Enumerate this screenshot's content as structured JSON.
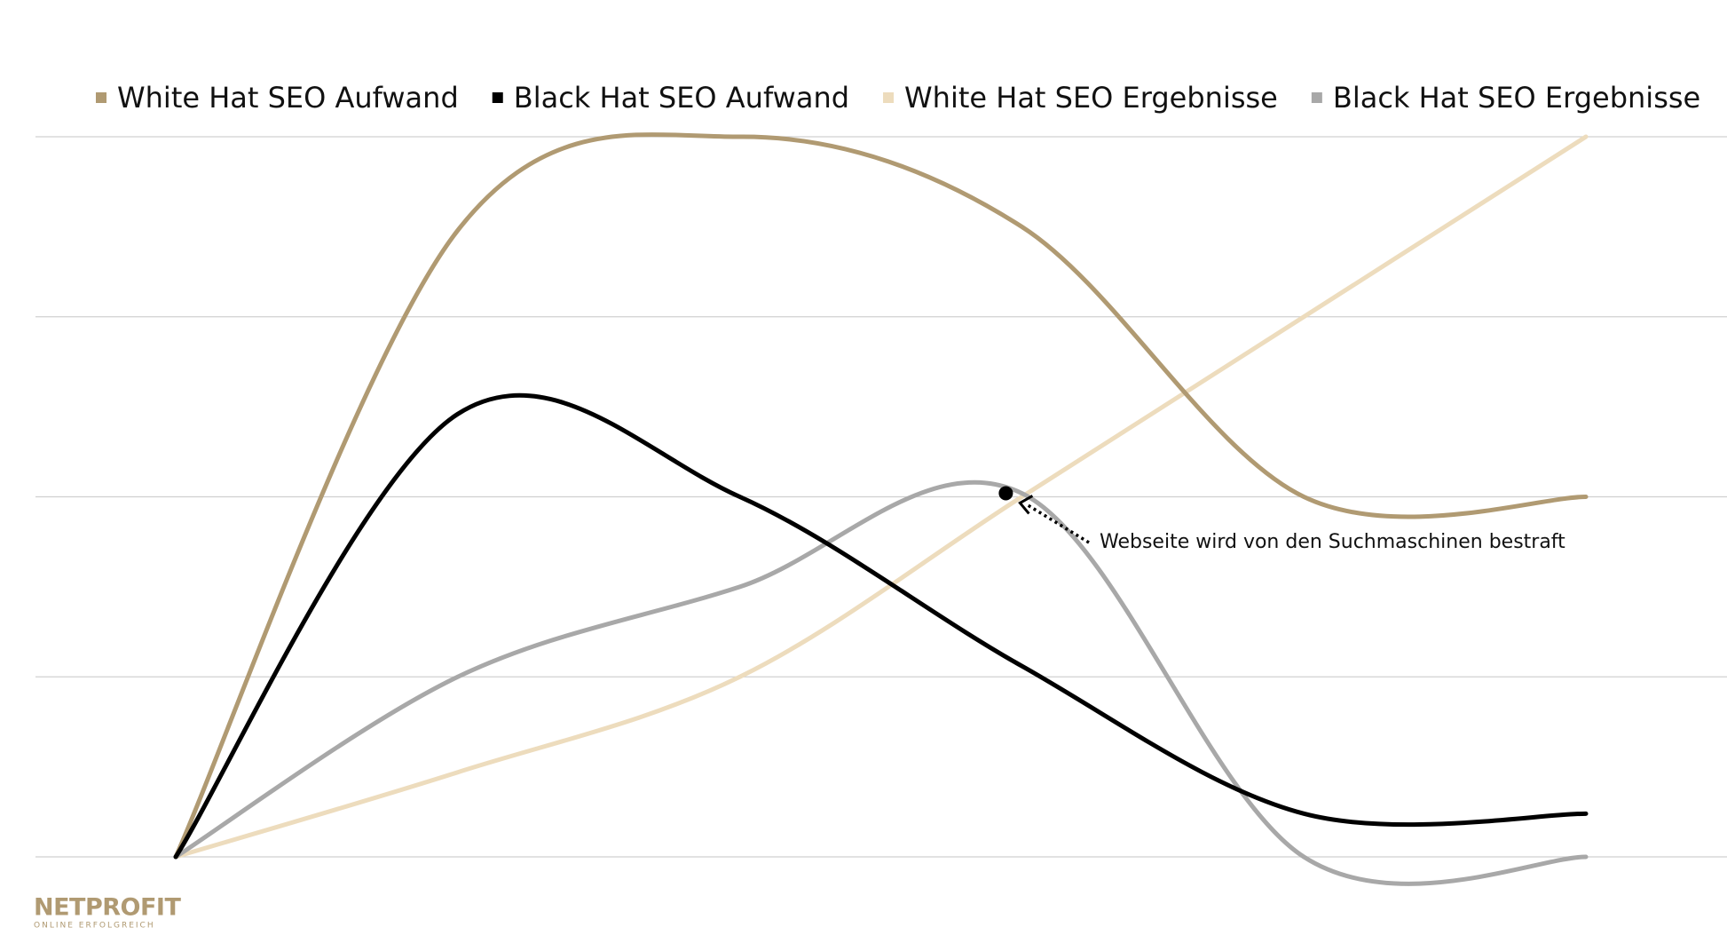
{
  "chart_data": {
    "type": "line",
    "categories": [
      null,
      null,
      null,
      null,
      null,
      null
    ],
    "series": [
      {
        "name": "White Hat SEO Aufwand",
        "color": "#b09a72",
        "values": [
          0,
          3.48,
          4.0,
          3.5,
          2.0,
          2.0
        ]
      },
      {
        "name": "Black Hat SEO Aufwand",
        "color": "#000000",
        "values": [
          0,
          2.46,
          2.0,
          1.06,
          0.24,
          0.24
        ]
      },
      {
        "name": "White Hat SEO Ergebnisse",
        "color": "#eddcbd",
        "values": [
          0,
          0.47,
          1.0,
          2.0,
          3.0,
          4.0
        ]
      },
      {
        "name": "Black Hat SEO Ergebnisse",
        "color": "#a8a8a8",
        "values": [
          0,
          1.0,
          1.5,
          2.02,
          0,
          0
        ]
      }
    ],
    "ylim": [
      0,
      4
    ],
    "yticks": [
      0,
      1,
      2,
      3,
      4
    ],
    "grid": true,
    "annotation": {
      "text": "Webseite wird von den Suchmaschinen bestraft",
      "series": 3,
      "index": 3
    }
  },
  "logo": {
    "name": "NETPROFIT",
    "tagline": "ONLINE ERFOLGREICH"
  }
}
